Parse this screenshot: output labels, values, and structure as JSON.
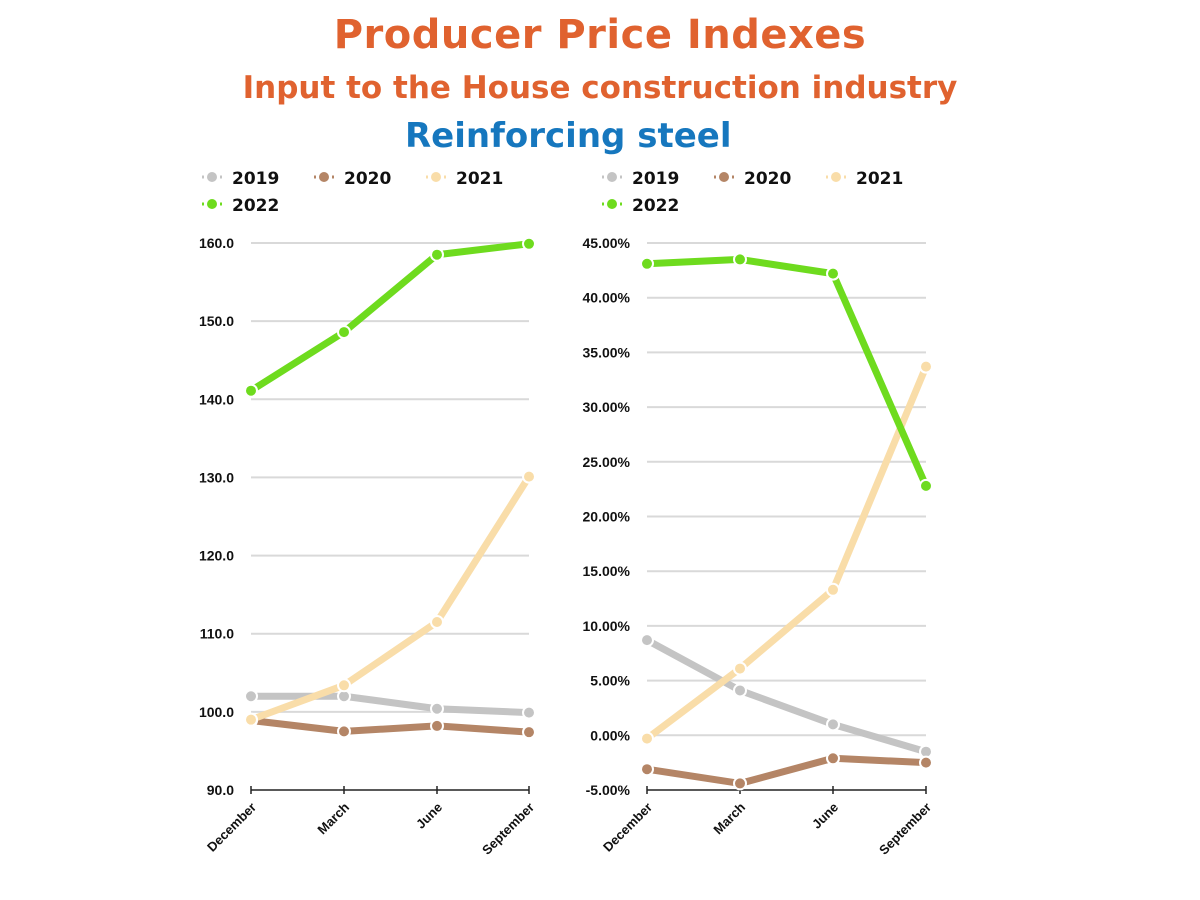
{
  "header": {
    "title": "Producer Price Indexes",
    "subtitle": "Input to the House construction industry",
    "product": "Reinforcing steel"
  },
  "chart_data": [
    {
      "type": "line",
      "title": "Producer Price Indexes - Reinforcing steel (index)",
      "xlabel": "",
      "ylabel": "",
      "categories": [
        "December",
        "March",
        "June",
        "September"
      ],
      "ylim": [
        90,
        160
      ],
      "yticks": [
        90,
        100,
        110,
        120,
        130,
        140,
        150,
        160
      ],
      "ytick_labels": [
        "90.0",
        "100.0",
        "110.0",
        "120.0",
        "130.0",
        "140.0",
        "150.0",
        "160.0"
      ],
      "grid": true,
      "legend_position": "top",
      "series": [
        {
          "name": "2019",
          "color": "#C4C4C4",
          "values": [
            102.0,
            102.0,
            100.4,
            99.9
          ]
        },
        {
          "name": "2020",
          "color": "#B48566",
          "values": [
            98.9,
            97.5,
            98.2,
            97.4
          ]
        },
        {
          "name": "2021",
          "color": "#F9DDA9",
          "values": [
            99.0,
            103.4,
            111.5,
            130.1
          ]
        },
        {
          "name": "2022",
          "color": "#6EDB1E",
          "values": [
            141.1,
            148.6,
            158.5,
            159.9
          ]
        }
      ]
    },
    {
      "type": "line",
      "title": "Producer Price Indexes - Reinforcing steel (annual % change)",
      "xlabel": "",
      "ylabel": "",
      "categories": [
        "December",
        "March",
        "June",
        "September"
      ],
      "ylim": [
        -5,
        45
      ],
      "yticks": [
        -5,
        0,
        5,
        10,
        15,
        20,
        25,
        30,
        35,
        40,
        45
      ],
      "ytick_labels": [
        "-5.00%",
        "0.00%",
        "5.00%",
        "10.00%",
        "15.00%",
        "20.00%",
        "25.00%",
        "30.00%",
        "35.00%",
        "40.00%",
        "45.00%"
      ],
      "grid": true,
      "legend_position": "top",
      "series": [
        {
          "name": "2019",
          "color": "#C4C4C4",
          "values": [
            8.7,
            4.1,
            1.0,
            -1.5
          ]
        },
        {
          "name": "2020",
          "color": "#B48566",
          "values": [
            -3.1,
            -4.4,
            -2.1,
            -2.5
          ]
        },
        {
          "name": "2021",
          "color": "#F9DDA9",
          "values": [
            -0.3,
            6.1,
            13.3,
            33.7
          ]
        },
        {
          "name": "2022",
          "color": "#6EDB1E",
          "values": [
            43.1,
            43.5,
            42.2,
            22.8
          ]
        }
      ]
    }
  ]
}
